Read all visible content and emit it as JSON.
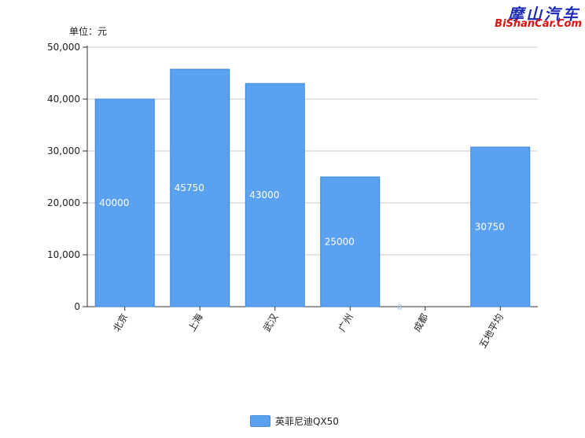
{
  "watermark": {
    "cn": "摩山汽车",
    "en": "BiShanCar.Com"
  },
  "unit_label": "单位：元",
  "legend": {
    "label": "英菲尼迪QX50",
    "color": "#5aa1ef"
  },
  "chart_data": {
    "type": "bar",
    "categories": [
      "北京",
      "上海",
      "武汉",
      "广州",
      "成都",
      "五地平均"
    ],
    "series": [
      {
        "name": "英菲尼迪QX50",
        "values": [
          40000,
          45750,
          43000,
          25000,
          0,
          30750
        ]
      }
    ],
    "yticks": [
      "0",
      "10,000",
      "20,000",
      "30,000",
      "40,000",
      "50,000"
    ],
    "ylim": [
      0,
      50000
    ],
    "ylabel": "单位：元",
    "xlabel": "",
    "title": "",
    "grid": true,
    "bar_color": "#5aa1ef",
    "data_labels": [
      "40000",
      "45750",
      "43000",
      "25000",
      "0",
      "30750"
    ]
  }
}
